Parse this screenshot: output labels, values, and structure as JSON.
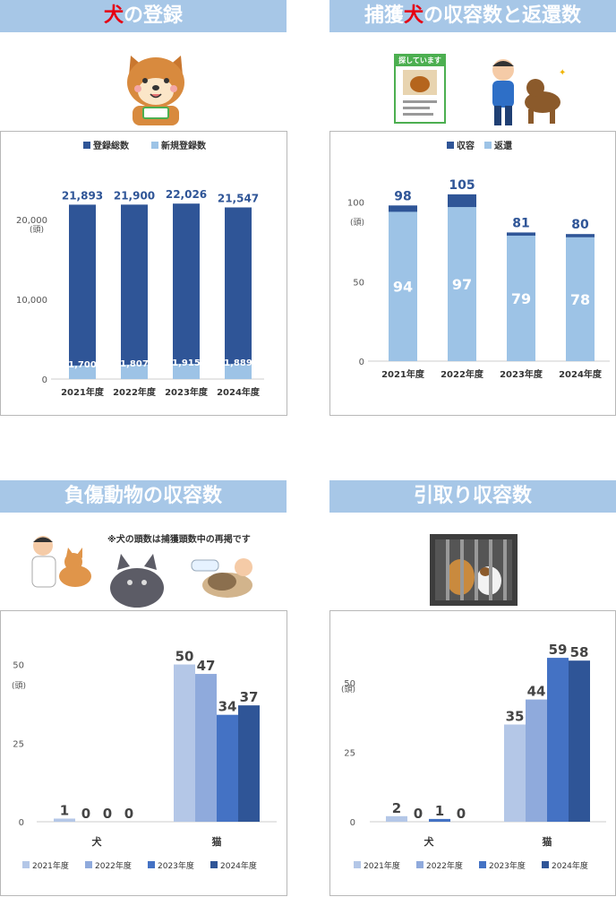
{
  "sections": [
    {
      "title_pre": "",
      "title_red": "犬",
      "title_post": "の登録"
    },
    {
      "title_pre": "捕獲",
      "title_red": "犬",
      "title_post": "の収容数と返還数"
    },
    {
      "title_pre": "",
      "title_red": "",
      "title_post": "負傷動物の収容数"
    },
    {
      "title_pre": "",
      "title_red": "",
      "title_post": "引取り収容数"
    }
  ],
  "note": "※犬の頭数は捕獲頭数中の再掲です",
  "poster_text": "探しています",
  "chart_data": [
    {
      "type": "bar",
      "categories": [
        "2021年度",
        "2022年度",
        "2023年度",
        "2024年度"
      ],
      "series": [
        {
          "name": "登録総数",
          "values": [
            21893,
            21900,
            22026,
            21547
          ],
          "labels": [
            "21,893",
            "21,900",
            "22,026",
            "21,547"
          ],
          "color": "#2f5597"
        },
        {
          "name": "新規登録数",
          "values": [
            1700,
            1807,
            1915,
            1889
          ],
          "labels": [
            "1,700",
            "1,807",
            "1,915",
            "1,889"
          ],
          "color": "#9dc3e6"
        }
      ],
      "yticks": [
        "20,000",
        "10,000",
        "0"
      ],
      "ylim": [
        0,
        22500
      ],
      "ylabel": "(頭)",
      "legend": "top"
    },
    {
      "type": "bar",
      "categories": [
        "2021年度",
        "2022年度",
        "2023年度",
        "2024年度"
      ],
      "series": [
        {
          "name": "収容",
          "values": [
            98,
            105,
            81,
            80
          ],
          "color": "#2f5597"
        },
        {
          "name": "返還",
          "values": [
            94,
            97,
            79,
            78
          ],
          "color": "#9dc3e6"
        }
      ],
      "yticks": [
        "100",
        "50",
        "0"
      ],
      "ylim": [
        0,
        110
      ],
      "ylabel": "(頭)",
      "legend": "top"
    },
    {
      "type": "bar",
      "categories": [
        "犬",
        "猫"
      ],
      "series": [
        {
          "name": "2021年度",
          "values": [
            1,
            50
          ],
          "color": "#b4c7e7"
        },
        {
          "name": "2022年度",
          "values": [
            0,
            47
          ],
          "color": "#8faadc"
        },
        {
          "name": "2023年度",
          "values": [
            0,
            34
          ],
          "color": "#4472c4"
        },
        {
          "name": "2024年度",
          "values": [
            0,
            37
          ],
          "color": "#2f5597"
        }
      ],
      "yticks": [
        "50",
        "25",
        "0"
      ],
      "ylim": [
        0,
        53
      ],
      "ylabel": "(頭)",
      "legend": "bottom"
    },
    {
      "type": "bar",
      "categories": [
        "犬",
        "猫"
      ],
      "series": [
        {
          "name": "2021年度",
          "values": [
            2,
            35
          ],
          "color": "#b4c7e7"
        },
        {
          "name": "2022年度",
          "values": [
            0,
            44
          ],
          "color": "#8faadc"
        },
        {
          "name": "2023年度",
          "values": [
            1,
            59
          ],
          "color": "#4472c4"
        },
        {
          "name": "2024年度",
          "values": [
            0,
            58
          ],
          "color": "#2f5597"
        }
      ],
      "yticks": [
        "50",
        "25",
        "0"
      ],
      "ylim": [
        0,
        60
      ],
      "ylabel": "(頭)",
      "legend": "bottom"
    }
  ]
}
